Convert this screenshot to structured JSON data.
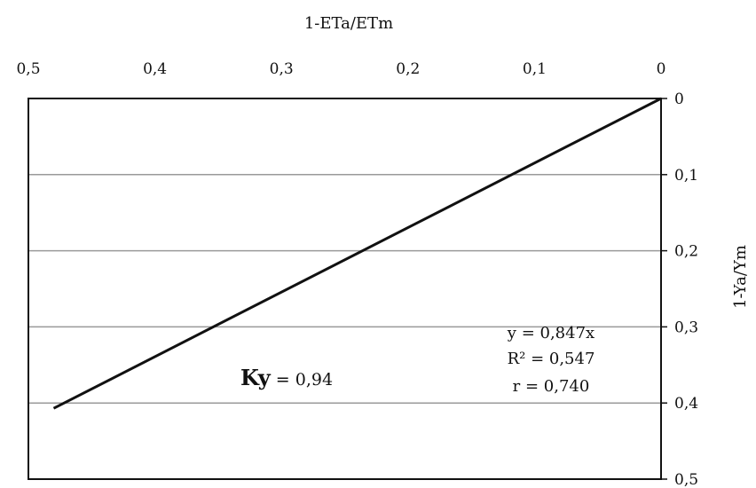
{
  "chart_data": {
    "type": "line",
    "x_title": "1-ETa/ETm",
    "y_title": "1-Ya/Ym",
    "x_axis_position": "top",
    "x_axis_reversed": true,
    "y_axis_position": "right",
    "y_axis_inverted": true,
    "xlim": [
      0,
      0.5
    ],
    "ylim": [
      0,
      0.5
    ],
    "x_ticks": [
      "0,5",
      "0,4",
      "0,3",
      "0,2",
      "0,1",
      "0"
    ],
    "x_tick_values": [
      0.5,
      0.4,
      0.3,
      0.2,
      0.1,
      0
    ],
    "y_ticks": [
      "0",
      "0,1",
      "0,2",
      "0,3",
      "0,4",
      "0,5"
    ],
    "y_tick_values": [
      0,
      0.1,
      0.2,
      0.3,
      0.4,
      0.5
    ],
    "grid": "horizontal",
    "series": [
      {
        "x": [
          0,
          0.48
        ],
        "y": [
          0,
          0.407
        ],
        "color": "#111111"
      }
    ],
    "annotations": {
      "equation": "y = 0,847x",
      "r_squared": "R² = 0,547",
      "r": "r = 0,740",
      "ky_label": "Ky",
      "ky_value": " = 0,94"
    }
  }
}
